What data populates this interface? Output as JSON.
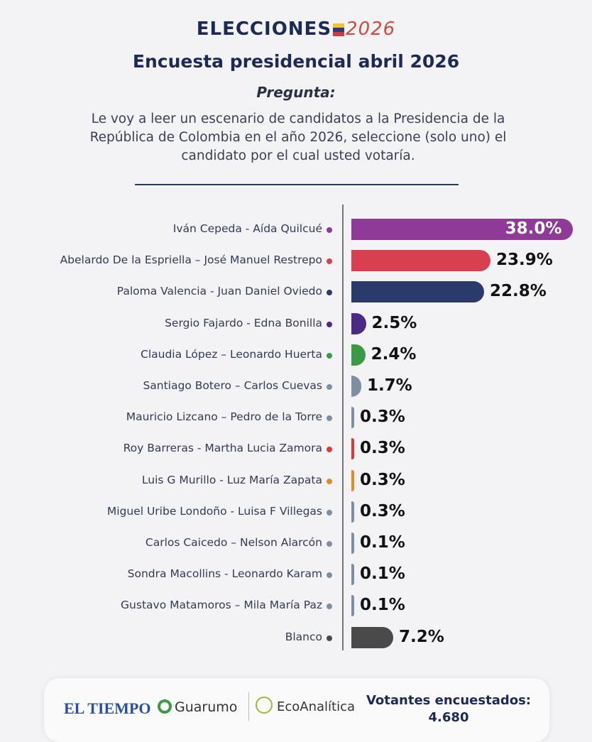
{
  "header": {
    "logo_word": "ELECCIONES",
    "logo_year": "2026",
    "title": "Encuesta presidencial abril 2026",
    "question_label": "Pregunta:",
    "question": "Le voy a leer un escenario de candidatos a la Presidencia de la República de Colombia en el año 2026, seleccione (solo uno) el candidato por el cual usted votaría."
  },
  "chart_data": {
    "type": "bar",
    "orientation": "horizontal",
    "title": "Encuesta presidencial abril 2026",
    "unit": "%",
    "categories": [
      "Iván Cepeda - Aída Quilcué",
      "Abelardo De la Espriella – José Manuel Restrepo",
      "Paloma Valencia - Juan Daniel Oviedo",
      "Sergio Fajardo - Edna Bonilla",
      "Claudia López – Leonardo Huerta",
      "Santiago Botero – Carlos Cuevas",
      "Mauricio Lizcano – Pedro de la Torre",
      "Roy Barreras - Martha Lucia Zamora",
      "Luis G Murillo - Luz María Zapata",
      "Miguel Uribe Londoño - Luisa F Villegas",
      "Carlos Caicedo – Nelson Alarcón",
      "Sondra Macollins - Leonardo Karam",
      "Gustavo Matamoros – Mila María Paz",
      "Blanco"
    ],
    "values": [
      38.0,
      23.9,
      22.8,
      2.5,
      2.4,
      1.7,
      0.3,
      0.3,
      0.3,
      0.3,
      0.1,
      0.1,
      0.1,
      7.2
    ],
    "labels": [
      "38.0%",
      "23.9%",
      "22.8%",
      "2.5%",
      "2.4%",
      "1.7%",
      "0.3%",
      "0.3%",
      "0.3%",
      "0.3%",
      "0.1%",
      "0.1%",
      "0.1%",
      "7.2%"
    ],
    "colors": [
      "#8e3a96",
      "#d9404f",
      "#2a3a6b",
      "#4a2a86",
      "#3a9a45",
      "#7d90a3",
      "#7d90a3",
      "#d83a3a",
      "#e08a2a",
      "#7d90a3",
      "#7d90a3",
      "#7d90a3",
      "#7d90a3",
      "#4a4a4a"
    ]
  },
  "footer": {
    "brand1": "EL TIEMPO",
    "brand2": "Guarumo",
    "brand3": "EcoAnalítica",
    "voters_label": "Votantes encuestados:",
    "voters_value": "4.680"
  }
}
